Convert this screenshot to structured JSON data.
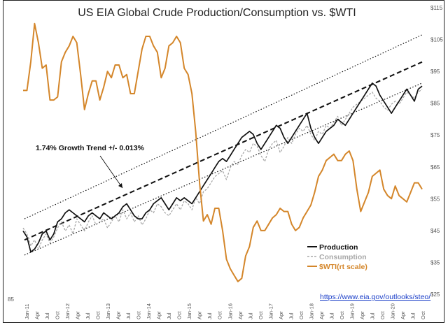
{
  "chart_data": {
    "type": "line",
    "title": "US EIA Global Crude Production/Consumption vs. $WTI",
    "left_axis_label": "85",
    "right_axis": {
      "ticks": [
        "$115",
        "$105",
        "$95",
        "$85",
        "$75",
        "$65",
        "$55",
        "$45",
        "$35",
        "$25"
      ],
      "ylim": [
        25,
        115
      ]
    },
    "x_tick_labels": [
      "Jan-11",
      "Apr",
      "Jul",
      "Oct",
      "Jan-12",
      "Apr",
      "Jul",
      "Oct",
      "Jan-13",
      "Apr",
      "Jul",
      "Oct",
      "Jan-14",
      "Apr",
      "Jul",
      "Oct",
      "Jan-15",
      "Apr",
      "Jul",
      "Oct",
      "Jan-16",
      "Apr",
      "Jul",
      "Oct",
      "Jan-17",
      "Apr",
      "Jul",
      "Oct",
      "Jan-18",
      "Apr",
      "Jul",
      "Oct",
      "Jan-19",
      "Apr",
      "Jul",
      "Oct",
      "Jan-20",
      "Apr",
      "Jul",
      "Oct"
    ],
    "annotation": "1.74% Growth Trend +/- 0.013%",
    "source_url": "https://www.eia.gov/outlooks/steo/",
    "colors": {
      "production": "#111111",
      "consumption": "#a8a8a8",
      "wti": "#d4862a",
      "trend": "#111111"
    },
    "series": [
      {
        "name": "Production",
        "legend": "Production",
        "scale": "left (index)",
        "style": "solid-black",
        "values": [
          41,
          39,
          34,
          35,
          37,
          40,
          41,
          38,
          40,
          44,
          45,
          47,
          48,
          47,
          46,
          45,
          44,
          46,
          47,
          46,
          45,
          47,
          46,
          45,
          46,
          47,
          49,
          50,
          48,
          46,
          45,
          45,
          47,
          48,
          50,
          51,
          52,
          50,
          48,
          50,
          52,
          51,
          52,
          51,
          50,
          52,
          54,
          56,
          58,
          60,
          62,
          64,
          65,
          64,
          66,
          68,
          70,
          72,
          73,
          74,
          73,
          70,
          68,
          70,
          72,
          74,
          76,
          75,
          72,
          70,
          72,
          74,
          76,
          78,
          80,
          75,
          72,
          70,
          72,
          74,
          75,
          76,
          78,
          77,
          76,
          78,
          80,
          82,
          84,
          86,
          88,
          90,
          89,
          86,
          84,
          82,
          80,
          82,
          84,
          86,
          88,
          86,
          84,
          88,
          89
        ]
      },
      {
        "name": "Consumption",
        "legend": "Consumption",
        "scale": "left (index)",
        "style": "dashed-grey",
        "values": [
          42,
          40,
          36,
          38,
          35,
          38,
          40,
          37,
          39,
          42,
          44,
          41,
          43,
          40,
          45,
          43,
          41,
          44,
          46,
          43,
          44,
          45,
          42,
          44,
          46,
          44,
          48,
          45,
          47,
          44,
          46,
          43,
          45,
          48,
          47,
          50,
          49,
          47,
          46,
          48,
          50,
          48,
          51,
          50,
          48,
          52,
          50,
          54,
          55,
          57,
          59,
          60,
          61,
          58,
          62,
          64,
          63,
          66,
          68,
          67,
          70,
          69,
          66,
          64,
          68,
          70,
          71,
          67,
          69,
          72,
          70,
          73,
          75,
          74,
          76,
          73,
          71,
          74,
          73,
          76,
          75,
          77,
          79,
          76,
          78,
          80,
          82,
          83,
          84,
          85,
          86,
          87,
          85,
          84,
          82,
          81,
          83,
          84,
          83,
          85,
          87,
          86,
          85,
          87,
          88
        ]
      },
      {
        "name": "$WTI",
        "legend": "$WTI(rt scale)",
        "scale": "right ($)",
        "style": "solid-orange",
        "values": [
          89,
          89,
          98,
          110,
          104,
          96,
          97,
          86,
          86,
          87,
          98,
          101,
          103,
          106,
          104,
          94,
          83,
          88,
          92,
          92,
          86,
          90,
          95,
          93,
          97,
          97,
          93,
          94,
          88,
          88,
          95,
          102,
          106,
          106,
          103,
          101,
          93,
          96,
          103,
          104,
          106,
          104,
          96,
          94,
          88,
          76,
          60,
          48,
          50,
          47,
          52,
          52,
          45,
          36,
          33,
          31,
          29,
          30,
          37,
          40,
          46,
          48,
          45,
          45,
          47,
          49,
          50,
          52,
          51,
          51,
          47,
          45,
          46,
          49,
          51,
          53,
          57,
          62,
          64,
          67,
          68,
          69,
          67,
          67,
          69,
          70,
          67,
          58,
          51,
          54,
          57,
          62,
          63,
          64,
          58,
          56,
          55,
          59,
          56,
          55,
          54,
          57,
          60,
          60,
          58
        ]
      },
      {
        "name": "Trend",
        "style": "dashed-black",
        "start_value": 38,
        "end_value": 97,
        "band": "+/- 0.013%",
        "upper_start": 45,
        "upper_end": 106,
        "lower_start": 33,
        "lower_end": 90
      }
    ]
  }
}
